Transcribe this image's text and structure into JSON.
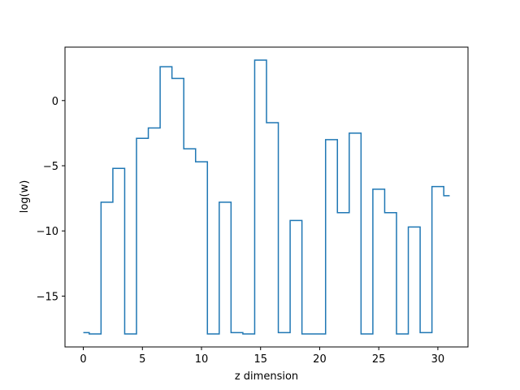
{
  "chart_data": {
    "type": "line",
    "drawstyle": "steps-mid",
    "title": "",
    "xlabel": "z dimension",
    "ylabel": "log(w)",
    "xlim": [
      -1.55,
      32.55
    ],
    "ylim": [
      -18.9,
      4.1
    ],
    "xticks": [
      0,
      5,
      10,
      15,
      20,
      25,
      30
    ],
    "xtick_labels": [
      "0",
      "5",
      "10",
      "15",
      "20",
      "25",
      "30"
    ],
    "yticks": [
      0,
      -5,
      -10,
      -15
    ],
    "ytick_labels": [
      "0",
      "−5",
      "−10",
      "−15"
    ],
    "grid": false,
    "legend": "none",
    "color": "#1f77b4",
    "x": [
      0,
      1,
      2,
      3,
      4,
      5,
      6,
      7,
      8,
      9,
      10,
      11,
      12,
      13,
      14,
      15,
      16,
      17,
      18,
      19,
      20,
      21,
      22,
      23,
      24,
      25,
      26,
      27,
      28,
      29,
      30,
      31
    ],
    "y": [
      -17.8,
      -17.9,
      -7.8,
      -5.2,
      -17.9,
      -2.9,
      -2.1,
      2.6,
      1.7,
      -3.7,
      -4.7,
      -17.9,
      -7.8,
      -17.8,
      -17.9,
      3.1,
      -1.7,
      -17.8,
      -9.2,
      -17.9,
      -17.9,
      -3.0,
      -8.6,
      -2.5,
      -17.9,
      -6.8,
      -8.6,
      -17.9,
      -9.7,
      -17.8,
      -6.6,
      -7.3
    ]
  }
}
